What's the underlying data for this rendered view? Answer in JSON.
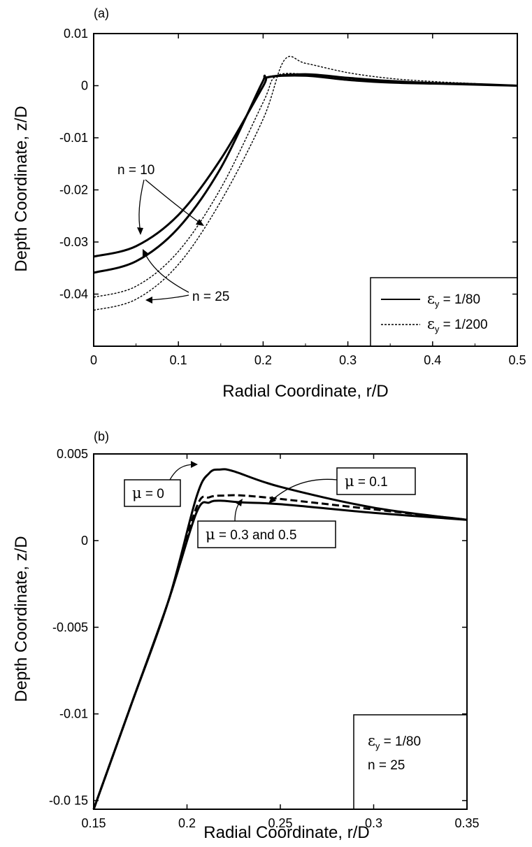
{
  "chart_data": [
    {
      "panel_label": "(a)",
      "type": "line",
      "xlabel": "Radial Coordinate,  r/D",
      "ylabel": "Depth Coordinate,  z/D",
      "xlim": [
        0,
        0.5
      ],
      "ylim": [
        -0.05,
        0.01
      ],
      "xticks": [
        "0",
        "0.1",
        "0.2",
        "0.3",
        "0.4",
        "0.5"
      ],
      "yticks": [
        "0.01",
        "0",
        "-0.01",
        "-0.02",
        "-0.03",
        "-0.04"
      ],
      "grid": false,
      "legend": {
        "placement": "bottom-right",
        "entries": [
          {
            "symbol": "ε",
            "subscript": "y",
            "label": " = 1/80",
            "style": "solid"
          },
          {
            "symbol": "ε",
            "subscript": "y",
            "label": " = 1/200",
            "style": "dotted"
          }
        ]
      },
      "annotations": [
        "n = 10",
        "n = 25"
      ],
      "series": [
        {
          "style": "solid",
          "x": [
            0,
            0.05,
            0.1,
            0.15,
            0.2,
            0.205,
            0.25,
            0.3,
            0.35,
            0.4,
            0.45,
            0.5
          ],
          "y": [
            -0.0328,
            -0.0308,
            -0.0248,
            -0.0141,
            -0.0001,
            0.0016,
            0.0019,
            0.0011,
            0.0006,
            0.0004,
            0.0002,
            0.0
          ]
        },
        {
          "style": "solid",
          "x": [
            0,
            0.05,
            0.1,
            0.15,
            0.198,
            0.205,
            0.25,
            0.3,
            0.35,
            0.4,
            0.45,
            0.5
          ],
          "y": [
            -0.0359,
            -0.0337,
            -0.0273,
            -0.0158,
            0.0003,
            0.0016,
            0.0022,
            0.0015,
            0.0009,
            0.0005,
            0.0003,
            0.0
          ]
        },
        {
          "style": "dotted",
          "x": [
            0,
            0.05,
            0.1,
            0.15,
            0.2,
            0.215,
            0.25,
            0.3,
            0.35,
            0.4,
            0.45,
            0.5
          ],
          "y": [
            -0.0406,
            -0.0385,
            -0.0318,
            -0.0197,
            -0.0032,
            0.0018,
            0.0022,
            0.0014,
            0.0008,
            0.0005,
            0.0003,
            0.0
          ]
        },
        {
          "style": "dotted",
          "x": [
            0,
            0.05,
            0.1,
            0.15,
            0.2,
            0.225,
            0.25,
            0.3,
            0.35,
            0.4,
            0.45,
            0.5
          ],
          "y": [
            -0.0431,
            -0.041,
            -0.0343,
            -0.0222,
            -0.0064,
            0.0049,
            0.0043,
            0.0025,
            0.0014,
            0.0008,
            0.0004,
            0.0
          ]
        }
      ]
    },
    {
      "panel_label": "(b)",
      "type": "line",
      "xlabel": "Radial Coordinate,  r/D",
      "ylabel": "Depth Coordinate,  z/D",
      "xlim": [
        0.15,
        0.35
      ],
      "ylim": [
        -0.0155,
        0.005
      ],
      "xticks": [
        "0.15",
        "0.2",
        "0.25",
        "0.3",
        "0.35"
      ],
      "yticks": [
        "0.005",
        "0",
        "-0.005",
        "-0.01",
        "-0.0 15"
      ],
      "grid": false,
      "legend": {
        "placement": "bottom-right",
        "entries": [
          {
            "symbol": "ε",
            "subscript": "y",
            "label": " = 1/80"
          },
          {
            "symbol": "",
            "subscript": "",
            "label": "n = 25"
          }
        ]
      },
      "annotations": [
        {
          "symbol": "μ",
          "label": " = 0"
        },
        {
          "symbol": "μ",
          "label": " = 0.1"
        },
        {
          "symbol": "μ",
          "label": " = 0.3 and 0.5"
        }
      ],
      "series": [
        {
          "style": "solid",
          "x": [
            0.15,
            0.17,
            0.19,
            0.205,
            0.212,
            0.218,
            0.225,
            0.25,
            0.3,
            0.35
          ],
          "y": [
            -0.0155,
            -0.0095,
            -0.0035,
            0.0025,
            0.0039,
            0.0041,
            0.004,
            0.0031,
            0.0019,
            0.0012
          ]
        },
        {
          "style": "dashed",
          "x": [
            0.15,
            0.17,
            0.19,
            0.205,
            0.212,
            0.22,
            0.23,
            0.25,
            0.3,
            0.35
          ],
          "y": [
            -0.0155,
            -0.0095,
            -0.0035,
            0.0019,
            0.0025,
            0.0026,
            0.0026,
            0.0024,
            0.0018,
            0.0012
          ]
        },
        {
          "style": "solid",
          "x": [
            0.15,
            0.17,
            0.19,
            0.205,
            0.212,
            0.218,
            0.23,
            0.25,
            0.3,
            0.35
          ],
          "y": [
            -0.0155,
            -0.0095,
            -0.0035,
            0.0016,
            0.0022,
            0.0023,
            0.0022,
            0.0021,
            0.0016,
            0.0012
          ]
        }
      ]
    }
  ]
}
